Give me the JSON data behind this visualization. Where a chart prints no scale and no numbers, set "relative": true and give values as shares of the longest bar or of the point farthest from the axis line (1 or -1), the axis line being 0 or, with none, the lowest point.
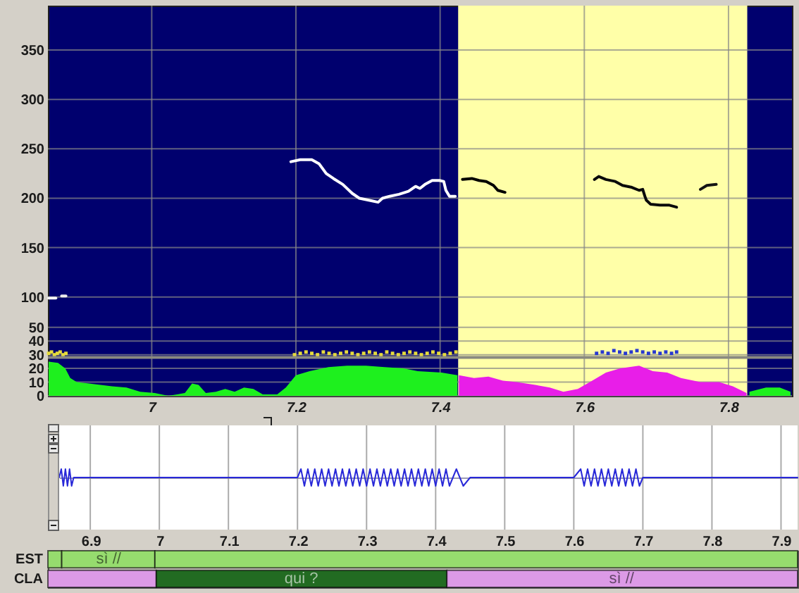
{
  "chart_data": [
    {
      "type": "line",
      "xlim": [
        6.856,
        7.888
      ],
      "xticks": [
        7,
        7.2,
        7.4,
        7.6,
        7.8
      ],
      "ylim": [
        0,
        395
      ],
      "yticks": [
        100,
        150,
        200,
        250,
        300,
        350
      ],
      "y2lim": [
        0,
        285
      ],
      "y2ticks": [
        0,
        10,
        20,
        30,
        40,
        50
      ],
      "grid": true,
      "bands": [
        {
          "axis": "x",
          "from": 7.425,
          "to": 7.826,
          "color": "#ffffa8"
        }
      ],
      "ref_lines": [
        {
          "axis": "y2",
          "value": 28,
          "color": "#8a8a80"
        }
      ],
      "series": [
        {
          "type": "area",
          "axis": "y2",
          "color": "#1ef01e",
          "x": [
            6.857,
            6.87,
            6.88,
            6.887,
            6.896,
            6.913,
            6.929,
            6.945,
            6.965,
            6.984,
            7.004,
            7.023,
            7.046,
            7.056,
            7.065,
            7.075,
            7.089,
            7.102,
            7.115,
            7.128,
            7.141,
            7.154,
            7.174,
            7.186,
            7.2,
            7.219,
            7.245,
            7.271,
            7.297,
            7.323,
            7.349,
            7.369,
            7.402,
            7.424,
            7.425,
            7.829,
            7.852,
            7.871,
            7.886
          ],
          "values": [
            25,
            24,
            20,
            13,
            10,
            9,
            8,
            7,
            6,
            3,
            2,
            0,
            2,
            9,
            8,
            2,
            3,
            5,
            3,
            6,
            5,
            1,
            1,
            6,
            15,
            18,
            21,
            22,
            22,
            21,
            20,
            18,
            17,
            15,
            null,
            3,
            6,
            6,
            3
          ]
        },
        {
          "type": "area",
          "axis": "y2",
          "color": "#e81ee8",
          "x": [
            7.426,
            7.447,
            7.467,
            7.487,
            7.506,
            7.532,
            7.552,
            7.571,
            7.591,
            7.611,
            7.63,
            7.65,
            7.676,
            7.695,
            7.715,
            7.734,
            7.761,
            7.787,
            7.806,
            7.825
          ],
          "values": [
            15,
            13,
            14,
            11,
            10,
            8,
            6,
            3,
            5,
            11,
            17,
            20,
            22,
            18,
            17,
            13,
            10,
            10,
            7,
            2
          ]
        },
        {
          "type": "scatter",
          "marker": "square",
          "axis": "y2",
          "color": "#e6dc3c",
          "x": [
            6.857,
            6.861,
            6.865,
            6.869,
            6.873,
            6.877,
            6.881,
            7.198,
            7.206,
            7.214,
            7.222,
            7.23,
            7.238,
            7.246,
            7.254,
            7.262,
            7.27,
            7.278,
            7.286,
            7.294,
            7.302,
            7.31,
            7.318,
            7.326,
            7.334,
            7.342,
            7.35,
            7.358,
            7.366,
            7.374,
            7.382,
            7.39,
            7.398,
            7.406,
            7.414,
            7.422
          ],
          "values": [
            31,
            32,
            30,
            31,
            32,
            30,
            31,
            30,
            31,
            32,
            31,
            30,
            32,
            31,
            30,
            31,
            32,
            31,
            30,
            31,
            32,
            31,
            30,
            32,
            31,
            30,
            31,
            32,
            31,
            30,
            31,
            32,
            31,
            30,
            31,
            32
          ]
        },
        {
          "type": "scatter",
          "marker": "square",
          "axis": "y2",
          "color": "#2838d0",
          "x": [
            7.617,
            7.625,
            7.633,
            7.641,
            7.649,
            7.657,
            7.665,
            7.673,
            7.681,
            7.689,
            7.697,
            7.705,
            7.713,
            7.721,
            7.728
          ],
          "values": [
            31,
            32,
            31,
            33,
            32,
            31,
            32,
            33,
            32,
            31,
            32,
            31,
            32,
            31,
            32
          ]
        },
        {
          "color": "#f6f6f6",
          "x": [
            6.857,
            6.867
          ],
          "values": [
            99,
            99
          ]
        },
        {
          "color": "#ececec",
          "x": [
            6.875,
            6.881
          ],
          "values": [
            101,
            101
          ]
        },
        {
          "color": "#ffffff",
          "x": [
            7.193,
            7.206,
            7.222,
            7.232,
            7.242,
            7.252,
            7.265,
            7.278,
            7.288,
            7.301,
            7.314,
            7.32,
            7.33,
            7.343,
            7.356,
            7.366,
            7.372,
            7.379,
            7.389,
            7.399,
            7.405,
            7.408,
            7.413,
            7.421
          ],
          "values": [
            237,
            239,
            239,
            235,
            225,
            220,
            214,
            205,
            200,
            198,
            196,
            200,
            202,
            204,
            207,
            212,
            210,
            214,
            218,
            218,
            217,
            208,
            202,
            202
          ]
        },
        {
          "color": "#000000",
          "x": [
            7.431,
            7.444,
            7.454,
            7.464,
            7.474,
            7.48,
            7.49
          ],
          "values": [
            219,
            220,
            218,
            217,
            213,
            208,
            206
          ]
        },
        {
          "color": "#0a0a0a",
          "x": [
            7.614,
            7.62,
            7.63,
            7.643,
            7.653,
            7.666,
            7.676,
            7.681,
            7.684,
            7.686,
            7.692,
            7.705,
            7.718,
            7.728
          ],
          "values": [
            219,
            222,
            219,
            217,
            213,
            211,
            208,
            209,
            202,
            198,
            194,
            193,
            193,
            191
          ]
        },
        {
          "color": "#141414",
          "x": [
            7.761,
            7.77,
            7.783
          ],
          "values": [
            209,
            213,
            214
          ]
        }
      ]
    },
    {
      "type": "line",
      "relative": true,
      "xlim": [
        6.855,
        7.924
      ],
      "xticks": [
        6.9,
        7,
        7.1,
        7.2,
        7.3,
        7.4,
        7.5,
        7.6,
        7.7,
        7.8,
        7.9
      ],
      "grid": "x",
      "tick_labels": false,
      "series": [
        {
          "color": "#2828d8",
          "x": [
            6.855,
            6.858,
            6.861,
            6.864,
            6.867,
            6.87,
            6.873,
            6.876,
            6.88,
            7.2,
            7.205,
            7.21,
            7.215,
            7.22,
            7.225,
            7.23,
            7.235,
            7.24,
            7.245,
            7.25,
            7.255,
            7.26,
            7.265,
            7.27,
            7.275,
            7.28,
            7.285,
            7.29,
            7.295,
            7.3,
            7.305,
            7.31,
            7.315,
            7.32,
            7.325,
            7.33,
            7.335,
            7.34,
            7.345,
            7.35,
            7.355,
            7.36,
            7.365,
            7.37,
            7.375,
            7.38,
            7.385,
            7.39,
            7.395,
            7.4,
            7.405,
            7.41,
            7.415,
            7.42,
            7.43,
            7.44,
            7.45,
            7.6,
            7.61,
            7.615,
            7.62,
            7.625,
            7.63,
            7.635,
            7.64,
            7.645,
            7.65,
            7.655,
            7.66,
            7.665,
            7.67,
            7.675,
            7.68,
            7.685,
            7.69,
            7.695,
            7.7,
            7.924
          ],
          "values": [
            0,
            1,
            -1,
            1,
            -1,
            1,
            -1,
            0,
            0,
            0,
            1,
            -1,
            1,
            -1,
            1,
            -1,
            1,
            -1,
            1,
            -1,
            1,
            -1,
            1,
            -1,
            1,
            -1,
            1,
            -1,
            1,
            -1,
            1,
            -1,
            1,
            -1,
            1,
            -1,
            1,
            -1,
            1,
            -1,
            1,
            -1,
            1,
            -1,
            1,
            -1,
            1,
            -1,
            1,
            -1,
            1,
            -1,
            1,
            -1,
            1,
            -1,
            0,
            0,
            1,
            -1,
            1,
            -1,
            1,
            -1,
            1,
            -1,
            1,
            -1,
            1,
            -1,
            1,
            -1,
            1,
            -1,
            1,
            -1,
            0,
            0
          ]
        }
      ]
    },
    {
      "type": "bar",
      "orientation": "horizontal",
      "categories": [
        "EST",
        "CLA"
      ],
      "xlim": [
        6.838,
        7.924
      ],
      "xticks": [
        6.9,
        7,
        7.1,
        7.2,
        7.3,
        7.4,
        7.5,
        7.6,
        7.7,
        7.8,
        7.9
      ],
      "series": [
        {
          "base": [
            6.838,
            6.838
          ],
          "values": [
            0.02,
            0.157
          ],
          "colors": [
            "#96dc6e",
            "#dc9ae6"
          ]
        },
        {
          "base": [
            6.858,
            6.995
          ],
          "values": [
            0.135,
            0.421
          ],
          "colors": [
            "#96dc6e",
            "#226b22"
          ]
        },
        {
          "base": [
            6.993,
            7.416
          ],
          "values": [
            0.931,
            0.508
          ],
          "colors": [
            "#96dc6e",
            "#dc9ae6"
          ]
        }
      ],
      "annotations": [
        {
          "text": "sì //",
          "x": 6.926,
          "y": "EST"
        },
        {
          "text": "qui ?",
          "x": 7.205,
          "y": "CLA"
        },
        {
          "text": "sì //",
          "x": 7.669,
          "y": "CLA"
        }
      ]
    }
  ]
}
